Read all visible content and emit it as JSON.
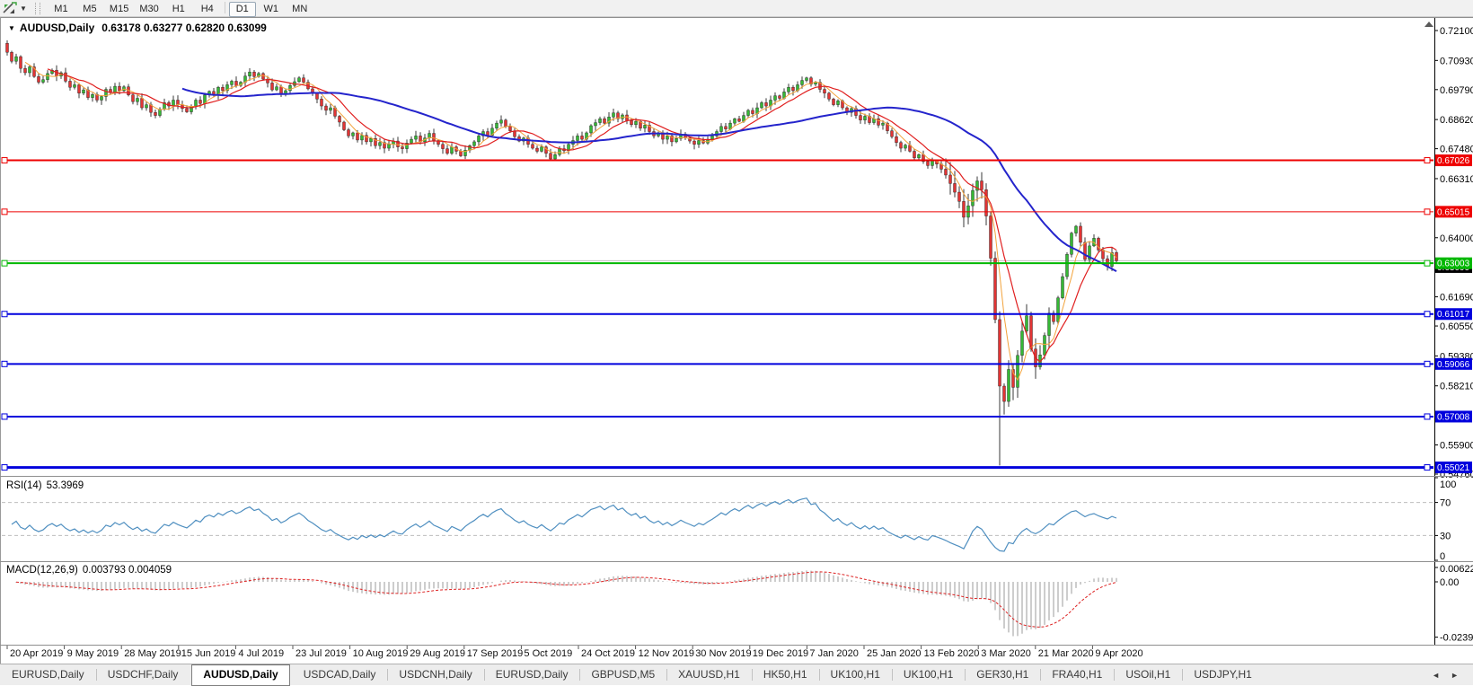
{
  "toolbar": {
    "chart_type_icon": "chart-cursor-icon",
    "dropdown_icon": "chevron-down-icon",
    "timeframes": [
      {
        "label": "M1",
        "active": false
      },
      {
        "label": "M5",
        "active": false
      },
      {
        "label": "M15",
        "active": false
      },
      {
        "label": "M30",
        "active": false
      },
      {
        "label": "H1",
        "active": false
      },
      {
        "label": "H4",
        "active": false
      },
      {
        "label": "D1",
        "active": true
      },
      {
        "label": "W1",
        "active": false
      },
      {
        "label": "MN",
        "active": false
      }
    ]
  },
  "chart_data": {
    "type": "candlestick",
    "symbol": "AUDUSD",
    "timeframe": "Daily",
    "title_symbol": "AUDUSD,Daily",
    "title_ohlc": "0.63178 0.63277 0.62820 0.63099",
    "ohlc_display": {
      "open": "0.63178",
      "high": "0.63277",
      "low": "0.62820",
      "close": "0.63099"
    },
    "x_axis_dates": [
      "20 Apr 2019",
      "9 May 2019",
      "28 May 2019",
      "15 Jun 2019",
      "4 Jul 2019",
      "23 Jul 2019",
      "10 Aug 2019",
      "29 Aug 2019",
      "17 Sep 2019",
      "5 Oct 2019",
      "24 Oct 2019",
      "12 Nov 2019",
      "30 Nov 2019",
      "19 Dec 2019",
      "7 Jan 2020",
      "25 Jan 2020",
      "13 Feb 2020",
      "3 Mar 2020",
      "21 Mar 2020",
      "9 Apr 2020"
    ],
    "y_axis_ticks": [
      {
        "label": "0.72100",
        "price": 0.721
      },
      {
        "label": "0.70930",
        "price": 0.7093
      },
      {
        "label": "0.69790",
        "price": 0.6979
      },
      {
        "label": "0.68620",
        "price": 0.6862
      },
      {
        "label": "0.67480",
        "price": 0.6748
      },
      {
        "label": "0.66310",
        "price": 0.6631
      },
      {
        "label": "0.64000",
        "price": 0.64
      },
      {
        "label": "0.61690",
        "price": 0.6169
      },
      {
        "label": "0.60550",
        "price": 0.6055
      },
      {
        "label": "0.59380",
        "price": 0.5938
      },
      {
        "label": "0.58210",
        "price": 0.5821
      },
      {
        "label": "0.55900",
        "price": 0.559
      },
      {
        "label": "0.54760",
        "price": 0.5476
      }
    ],
    "y_axis_range": {
      "top_price": 0.721,
      "bottom_price": 0.5476
    },
    "open_first": 0.716,
    "closes": [
      0.7125,
      0.709,
      0.7108,
      0.7062,
      0.7045,
      0.7068,
      0.703,
      0.7008,
      0.7018,
      0.7042,
      0.7055,
      0.7032,
      0.7045,
      0.7012,
      0.6988,
      0.6998,
      0.6965,
      0.6978,
      0.6948,
      0.696,
      0.6938,
      0.6952,
      0.698,
      0.6968,
      0.6992,
      0.6975,
      0.699,
      0.6958,
      0.6932,
      0.6945,
      0.6908,
      0.692,
      0.689,
      0.6878,
      0.6902,
      0.6928,
      0.6915,
      0.6938,
      0.692,
      0.6905,
      0.6892,
      0.6912,
      0.6938,
      0.6925,
      0.6958,
      0.6972,
      0.696,
      0.6988,
      0.6975,
      0.6998,
      0.7012,
      0.6995,
      0.7008,
      0.7032,
      0.7048,
      0.703,
      0.7042,
      0.702,
      0.7005,
      0.6978,
      0.699,
      0.6962,
      0.6975,
      0.6995,
      0.701,
      0.7025,
      0.7008,
      0.6982,
      0.6965,
      0.6942,
      0.6915,
      0.6898,
      0.6908,
      0.6875,
      0.6852,
      0.6822,
      0.6798,
      0.681,
      0.6782,
      0.68,
      0.6775,
      0.6788,
      0.676,
      0.6772,
      0.675,
      0.6765,
      0.6778,
      0.6755,
      0.6748,
      0.677,
      0.6785,
      0.6798,
      0.6775,
      0.679,
      0.6808,
      0.678,
      0.6765,
      0.6748,
      0.673,
      0.6755,
      0.6738,
      0.672,
      0.6742,
      0.676,
      0.6775,
      0.6798,
      0.6815,
      0.68,
      0.6828,
      0.6848,
      0.686,
      0.6835,
      0.6818,
      0.6795,
      0.6778,
      0.679,
      0.6765,
      0.675,
      0.6738,
      0.6755,
      0.673,
      0.6708,
      0.6725,
      0.6748,
      0.674,
      0.6765,
      0.678,
      0.6798,
      0.6785,
      0.681,
      0.6838,
      0.685,
      0.6865,
      0.6848,
      0.6872,
      0.6888,
      0.6865,
      0.688,
      0.6858,
      0.6842,
      0.6855,
      0.6828,
      0.684,
      0.6815,
      0.6798,
      0.681,
      0.6785,
      0.6798,
      0.6775,
      0.6788,
      0.6805,
      0.679,
      0.6778,
      0.6765,
      0.678,
      0.677,
      0.6785,
      0.6798,
      0.6815,
      0.6835,
      0.6825,
      0.6848,
      0.6865,
      0.6855,
      0.6878,
      0.6898,
      0.6885,
      0.6908,
      0.6928,
      0.6915,
      0.6938,
      0.6955,
      0.6945,
      0.697,
      0.6988,
      0.6975,
      0.6998,
      0.7015,
      0.7025,
      0.7,
      0.7008,
      0.698,
      0.6965,
      0.6942,
      0.692,
      0.6935,
      0.6908,
      0.689,
      0.6905,
      0.6878,
      0.686,
      0.6875,
      0.685,
      0.6865,
      0.684,
      0.6848,
      0.6818,
      0.6795,
      0.6772,
      0.675,
      0.6762,
      0.6738,
      0.6712,
      0.6725,
      0.6698,
      0.6682,
      0.6702,
      0.6688,
      0.6668,
      0.6645,
      0.6612,
      0.6578,
      0.6542,
      0.648,
      0.6525,
      0.6585,
      0.6622,
      0.6588,
      0.6485,
      0.632,
      0.608,
      0.582,
      0.576,
      0.5885,
      0.5815,
      0.594,
      0.6035,
      0.6095,
      0.5965,
      0.5895,
      0.5942,
      0.6018,
      0.6105,
      0.6072,
      0.6165,
      0.6248,
      0.6335,
      0.6418,
      0.6445,
      0.6382,
      0.6315,
      0.6368,
      0.6398,
      0.6352,
      0.6318,
      0.6288,
      0.6342,
      0.631
    ],
    "wick_overrides": [
      {
        "index": 221,
        "low": 0.551
      }
    ],
    "candle_up_color": "#35b835",
    "candle_down_color": "#e23434",
    "wick_color": "#3a3a3a",
    "moving_averages": [
      {
        "name": "fast-ma",
        "period": 5,
        "color": "#f2a23a",
        "width": 1
      },
      {
        "name": "mid-ma",
        "period": 10,
        "color": "#e01f1f",
        "width": 1.2
      },
      {
        "name": "slow-ma",
        "period": 40,
        "color": "#2424cc",
        "width": 2
      }
    ],
    "horizontal_lines": [
      {
        "price": 0.67026,
        "label": "0.67026",
        "color": "#ee0000",
        "width": 2
      },
      {
        "price": 0.65015,
        "label": "0.65015",
        "color": "#ee0000",
        "width": 1
      },
      {
        "price": 0.63003,
        "label": "0.63003",
        "color": "#00b800",
        "width": 2
      },
      {
        "price": 0.61017,
        "label": "0.61017",
        "color": "#0000dd",
        "width": 2
      },
      {
        "price": 0.59066,
        "label": "0.59066",
        "color": "#0000dd",
        "width": 2
      },
      {
        "price": 0.57008,
        "label": "0.57008",
        "color": "#0000dd",
        "width": 2
      },
      {
        "price": 0.55021,
        "label": "0.55021",
        "color": "#0000dd",
        "width": 3
      }
    ],
    "bid_price_label": {
      "text": "0.63099",
      "bg": "#000000",
      "fg": "#ffffff"
    },
    "bid_line_color": "#c0c0c0",
    "indicators": {
      "rsi": {
        "label": "RSI(14)",
        "value": "53.3969",
        "period": 14,
        "levels": [
          70,
          30
        ],
        "axis_ticks": [
          100,
          70,
          30,
          0
        ],
        "color": "#4f8fc0",
        "level_color": "#bdbdbd"
      },
      "macd": {
        "label": "MACD(12,26,9)",
        "values": "0.003793 0.004059",
        "fast": 12,
        "slow": 26,
        "signal": 9,
        "axis_ticks": [
          {
            "label": "0.00622",
            "value": 0.00622
          },
          {
            "label": "0.00",
            "value": 0
          },
          {
            "label": "-0.023959",
            "value": -0.023959
          }
        ],
        "axis_top": 0.00622,
        "axis_bottom": -0.023959,
        "hist_color": "#9b9b9b",
        "signal_color": "#dd2222"
      }
    }
  },
  "tabs": {
    "items": [
      {
        "label": "EURUSD,Daily",
        "active": false
      },
      {
        "label": "USDCHF,Daily",
        "active": false
      },
      {
        "label": "AUDUSD,Daily",
        "active": true
      },
      {
        "label": "USDCAD,Daily",
        "active": false
      },
      {
        "label": "USDCNH,Daily",
        "active": false
      },
      {
        "label": "EURUSD,Daily",
        "active": false
      },
      {
        "label": "GBPUSD,M5",
        "active": false
      },
      {
        "label": "XAUUSD,H1",
        "active": false
      },
      {
        "label": "HK50,H1",
        "active": false
      },
      {
        "label": "UK100,H1",
        "active": false
      },
      {
        "label": "UK100,H1",
        "active": false
      },
      {
        "label": "GER30,H1",
        "active": false
      },
      {
        "label": "FRA40,H1",
        "active": false
      },
      {
        "label": "USOil,H1",
        "active": false
      },
      {
        "label": "USDJPY,H1",
        "active": false
      }
    ],
    "scroll_left": "◄",
    "scroll_right": "►"
  }
}
